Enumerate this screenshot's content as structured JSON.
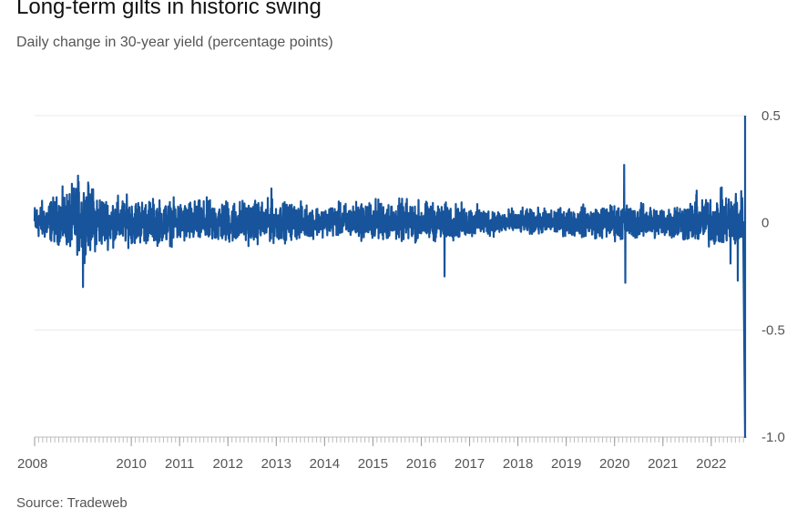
{
  "title": "Long-term gilts in historic swing",
  "subtitle": "Daily change in 30-year yield (percentage points)",
  "source": "Source: Tradeweb",
  "colors": {
    "series": "#17549b",
    "grid": "#e9e9e9",
    "axis": "#bdbdbd",
    "text": "#555555"
  },
  "chart_data": {
    "type": "line",
    "title": "Long-term gilts in historic swing",
    "subtitle": "Daily change in 30-year yield (percentage points)",
    "xlabel": "",
    "ylabel": "",
    "x_ticks": [
      "2008",
      "2010",
      "2011",
      "2012",
      "2013",
      "2014",
      "2015",
      "2016",
      "2017",
      "2018",
      "2019",
      "2020",
      "2021",
      "2022"
    ],
    "y_ticks": [
      {
        "value": 0.5,
        "label": "0.5"
      },
      {
        "value": 0,
        "label": "0"
      },
      {
        "value": -0.5,
        "label": "-0.5"
      },
      {
        "value": -1.0,
        "label": "-1.0"
      }
    ],
    "xlim": [
      2008.0,
      2022.7
    ],
    "ylim": [
      -1.0,
      0.5
    ],
    "grid": true,
    "y_axis_side": "right",
    "series": [
      {
        "volatility_envelope": [
          {
            "x": 2008.0,
            "max": 0.09,
            "min": -0.07
          },
          {
            "x": 2008.5,
            "max": 0.13,
            "min": -0.1
          },
          {
            "x": 2009.0,
            "max": 0.2,
            "min": -0.15
          },
          {
            "x": 2009.5,
            "max": 0.12,
            "min": -0.11
          },
          {
            "x": 2010.0,
            "max": 0.12,
            "min": -0.1
          },
          {
            "x": 2011.0,
            "max": 0.1,
            "min": -0.1
          },
          {
            "x": 2012.0,
            "max": 0.11,
            "min": -0.1
          },
          {
            "x": 2013.0,
            "max": 0.1,
            "min": -0.09
          },
          {
            "x": 2014.0,
            "max": 0.08,
            "min": -0.06
          },
          {
            "x": 2015.0,
            "max": 0.11,
            "min": -0.08
          },
          {
            "x": 2016.0,
            "max": 0.1,
            "min": -0.09
          },
          {
            "x": 2017.0,
            "max": 0.08,
            "min": -0.07
          },
          {
            "x": 2018.0,
            "max": 0.06,
            "min": -0.05
          },
          {
            "x": 2019.0,
            "max": 0.07,
            "min": -0.06
          },
          {
            "x": 2020.0,
            "max": 0.09,
            "min": -0.08
          },
          {
            "x": 2021.0,
            "max": 0.08,
            "min": -0.07
          },
          {
            "x": 2022.0,
            "max": 0.13,
            "min": -0.11
          },
          {
            "x": 2022.7,
            "max": 0.16,
            "min": -0.12
          }
        ],
        "notable_points": [
          {
            "x": 2008.9,
            "y": 0.22
          },
          {
            "x": 2009.0,
            "y": -0.3
          },
          {
            "x": 2012.9,
            "y": 0.16
          },
          {
            "x": 2016.48,
            "y": -0.25
          },
          {
            "x": 2020.2,
            "y": 0.27
          },
          {
            "x": 2020.22,
            "y": -0.28
          },
          {
            "x": 2021.7,
            "y": 0.15
          },
          {
            "x": 2022.4,
            "y": -0.19
          },
          {
            "x": 2022.55,
            "y": -0.27
          },
          {
            "x": 2022.71,
            "y": -1.0
          },
          {
            "x": 2022.73,
            "y": 0.5
          }
        ]
      }
    ]
  }
}
